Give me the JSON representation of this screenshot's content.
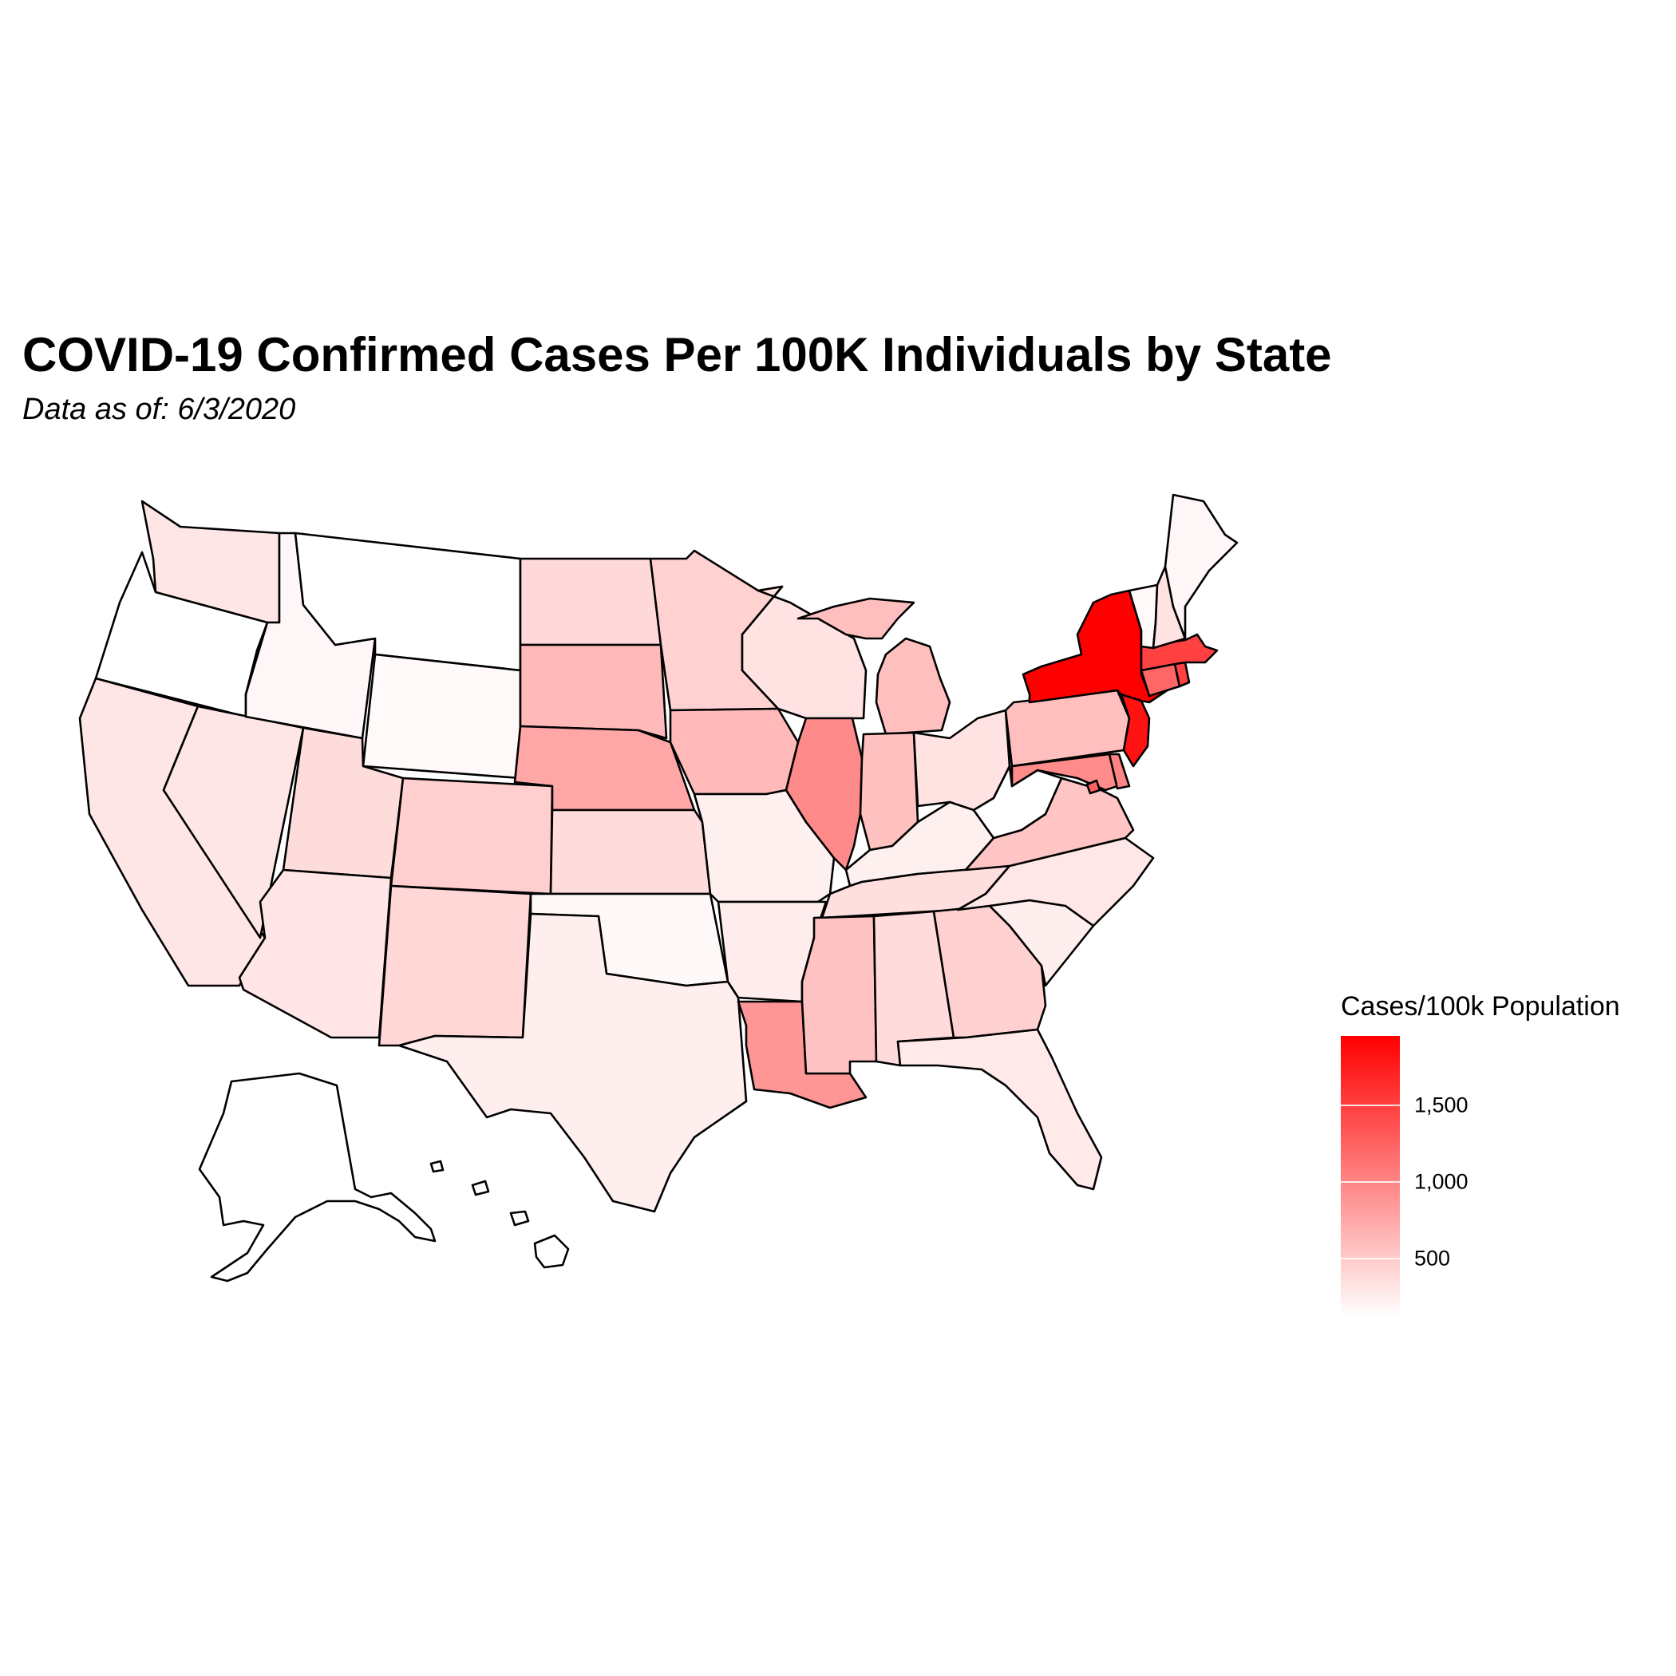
{
  "title": "COVID-19 Confirmed Cases Per 100K Individuals by State",
  "subtitle": "Data as of: 6/3/2020",
  "chart_data": {
    "type": "choropleth",
    "legend": {
      "title": "Cases/100k Population",
      "ticks": [
        {
          "value": 500,
          "label": "500"
        },
        {
          "value": 1000,
          "label": "1,000"
        },
        {
          "value": 1500,
          "label": "1,500"
        }
      ],
      "range": [
        120,
        1950
      ],
      "low_color": "#ffffff",
      "high_color": "#ff0000",
      "placement": "right"
    },
    "states": [
      {
        "id": "WA",
        "value": 300
      },
      {
        "id": "OR",
        "value": 110
      },
      {
        "id": "CA",
        "value": 300
      },
      {
        "id": "NV",
        "value": 300
      },
      {
        "id": "ID",
        "value": 180
      },
      {
        "id": "MT",
        "value": 50
      },
      {
        "id": "WY",
        "value": 160
      },
      {
        "id": "UT",
        "value": 370
      },
      {
        "id": "AZ",
        "value": 310
      },
      {
        "id": "CO",
        "value": 470
      },
      {
        "id": "NM",
        "value": 410
      },
      {
        "id": "ND",
        "value": 390
      },
      {
        "id": "SD",
        "value": 620
      },
      {
        "id": "NE",
        "value": 760
      },
      {
        "id": "KS",
        "value": 380
      },
      {
        "id": "OK",
        "value": 170
      },
      {
        "id": "TX",
        "value": 240
      },
      {
        "id": "MN",
        "value": 450
      },
      {
        "id": "IA",
        "value": 620
      },
      {
        "id": "MO",
        "value": 230
      },
      {
        "id": "AR",
        "value": 250
      },
      {
        "id": "LA",
        "value": 870
      },
      {
        "id": "WI",
        "value": 320
      },
      {
        "id": "IL",
        "value": 960
      },
      {
        "id": "MI",
        "value": 580
      },
      {
        "id": "IN",
        "value": 570
      },
      {
        "id": "OH",
        "value": 320
      },
      {
        "id": "KY",
        "value": 230
      },
      {
        "id": "TN",
        "value": 360
      },
      {
        "id": "MS",
        "value": 560
      },
      {
        "id": "AL",
        "value": 380
      },
      {
        "id": "GA",
        "value": 460
      },
      {
        "id": "FL",
        "value": 280
      },
      {
        "id": "SC",
        "value": 240
      },
      {
        "id": "NC",
        "value": 290
      },
      {
        "id": "VA",
        "value": 540
      },
      {
        "id": "WV",
        "value": 110
      },
      {
        "id": "PA",
        "value": 580
      },
      {
        "id": "NY",
        "value": 1950
      },
      {
        "id": "VT",
        "value": 160
      },
      {
        "id": "NH",
        "value": 330
      },
      {
        "id": "ME",
        "value": 180
      },
      {
        "id": "MA",
        "value": 1480
      },
      {
        "id": "RI",
        "value": 1480
      },
      {
        "id": "CT",
        "value": 1210
      },
      {
        "id": "NJ",
        "value": 1820
      },
      {
        "id": "DE",
        "value": 1000
      },
      {
        "id": "MD",
        "value": 950
      },
      {
        "id": "DC",
        "value": 1250
      },
      {
        "id": "AK",
        "value": 60
      },
      {
        "id": "HI",
        "value": 45
      }
    ]
  }
}
